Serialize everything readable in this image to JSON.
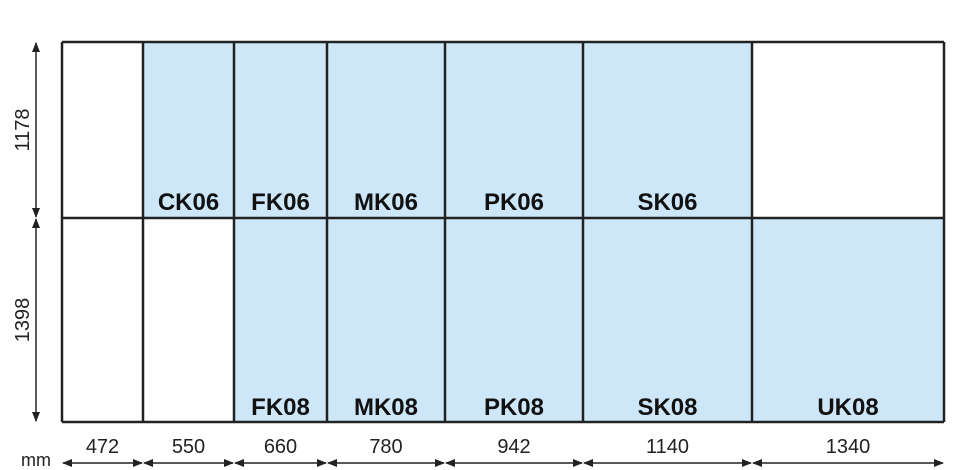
{
  "unit": "mm",
  "widths": [
    472,
    550,
    660,
    780,
    942,
    1140,
    1340
  ],
  "heights": [
    1178,
    1398
  ],
  "rows": [
    [
      "CK06",
      "FK06",
      "MK06",
      "PK06",
      "SK06"
    ],
    [
      "FK08",
      "MK08",
      "PK08",
      "SK08",
      "UK08"
    ]
  ]
}
